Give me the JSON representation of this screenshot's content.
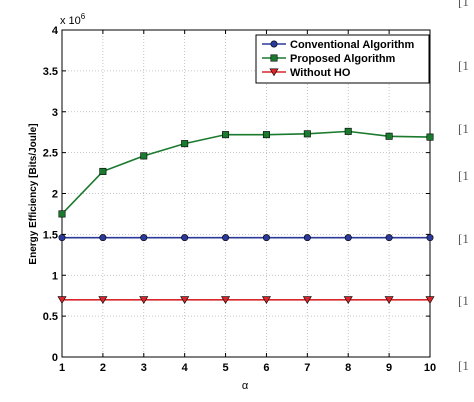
{
  "chart_data": {
    "type": "line",
    "title": "",
    "xlabel": "α",
    "ylabel": "Energy Efficiency [Bits/Joule]",
    "y_multiplier": "x 10",
    "y_multiplier_exp": "6",
    "x": [
      1,
      2,
      3,
      4,
      5,
      6,
      7,
      8,
      9,
      10
    ],
    "xlim": [
      1,
      10
    ],
    "ylim": [
      0,
      4
    ],
    "x_ticks": [
      "1",
      "2",
      "3",
      "4",
      "5",
      "6",
      "7",
      "8",
      "9",
      "10"
    ],
    "y_ticks": [
      "0",
      "0.5",
      "1",
      "1.5",
      "2",
      "2.5",
      "3",
      "3.5",
      "4"
    ],
    "grid": true,
    "legend_position": "top-right",
    "series": [
      {
        "name": "Conventional Algorithm",
        "color": "#2b3a9a",
        "marker": "circle",
        "values": [
          1.46,
          1.46,
          1.46,
          1.46,
          1.46,
          1.46,
          1.46,
          1.46,
          1.46,
          1.46
        ]
      },
      {
        "name": "Proposed Algorithm",
        "color": "#1a7a2e",
        "marker": "square",
        "values": [
          1.75,
          2.27,
          2.46,
          2.61,
          2.72,
          2.72,
          2.73,
          2.76,
          2.7,
          2.69
        ]
      },
      {
        "name": "Without HO",
        "color": "#d8262a",
        "marker": "triangle-down",
        "values": [
          0.7,
          0.7,
          0.7,
          0.7,
          0.7,
          0.7,
          0.7,
          0.7,
          0.7,
          0.7
        ]
      }
    ]
  },
  "page_edge_fragments": [
    "[1",
    "[1",
    "[1",
    "[1",
    "[1",
    "[1",
    "[1"
  ]
}
